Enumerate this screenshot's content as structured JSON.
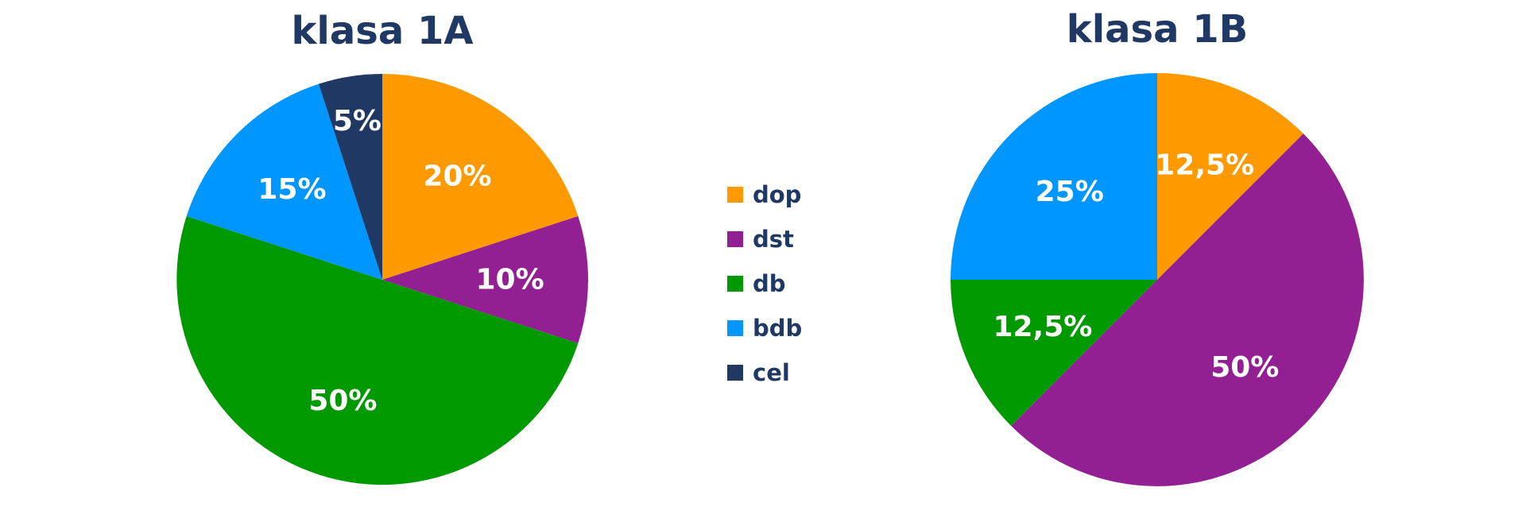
{
  "chart_data": [
    {
      "type": "pie",
      "title": "klasa 1A",
      "categories": [
        "dop",
        "dst",
        "db",
        "bdb",
        "cel"
      ],
      "values": [
        20,
        10,
        50,
        15,
        5
      ],
      "labels": [
        "20%",
        "10%",
        "50%",
        "15%",
        "5%"
      ],
      "start_angle_deg": 0,
      "direction": "clockwise"
    },
    {
      "type": "pie",
      "title": "klasa 1B",
      "categories": [
        "dop",
        "dst",
        "db",
        "bdb",
        "cel"
      ],
      "values": [
        12.5,
        50,
        12.5,
        25,
        0
      ],
      "labels": [
        "12,5%",
        "50%",
        "12,5%",
        "25%",
        ""
      ],
      "start_angle_deg": 0,
      "direction": "clockwise"
    }
  ],
  "legend": {
    "placement": "center",
    "items": [
      {
        "label": "dop",
        "color": "#ff9900"
      },
      {
        "label": "dst",
        "color": "#922092"
      },
      {
        "label": "db",
        "color": "#009900"
      },
      {
        "label": "bdb",
        "color": "#0096ff"
      },
      {
        "label": "cel",
        "color": "#1f3864"
      }
    ]
  }
}
